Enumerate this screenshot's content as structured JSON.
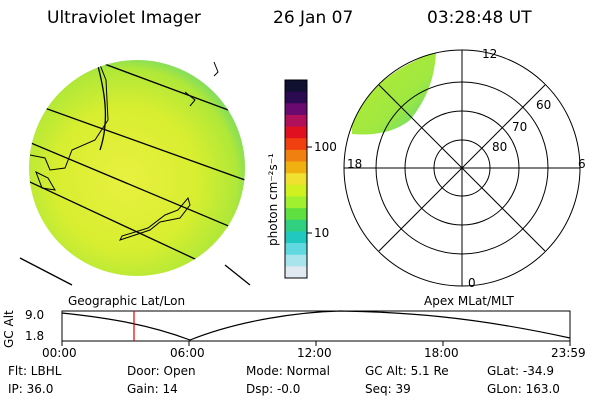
{
  "header": {
    "title": "Ultraviolet Imager",
    "date": "26 Jan 07",
    "time": "03:28:48 UT"
  },
  "colorbar": {
    "label": "photon cm⁻²s⁻¹",
    "ticks": [
      "100",
      "10"
    ],
    "colors": [
      "#101030",
      "#2a0a50",
      "#6a0a70",
      "#b0105a",
      "#e01020",
      "#f04010",
      "#f08010",
      "#f0b010",
      "#f0e030",
      "#d0f020",
      "#a0f030",
      "#60e040",
      "#30d080",
      "#20c8c0",
      "#60d8e0",
      "#a8e4ec",
      "#e0e8f0"
    ]
  },
  "left_panel": {
    "caption": "Geographic Lat/Lon"
  },
  "polar_plot": {
    "caption": "Apex MLat/MLT",
    "mlt_labels": {
      "top": "12",
      "right": "6",
      "bottom": "0",
      "left": "18"
    },
    "lat_labels": [
      "60",
      "70",
      "80"
    ]
  },
  "timeline": {
    "ylabel": "GC Alt",
    "y_ticks": [
      "9.0",
      "1.8"
    ],
    "x_ticks": [
      "00:00",
      "06:00",
      "12:00",
      "18:00",
      "23:59"
    ],
    "marker_time": "03:28:48",
    "marker_color": "#e00000"
  },
  "info": {
    "flt": "Flt: LBHL",
    "ip": "IP: 36.0",
    "door": "Door: Open",
    "gain": "Gain: 14",
    "mode": "Mode: Normal",
    "dsp": "Dsp:  -0.0",
    "gcalt": "GC Alt: 5.1 Re",
    "seq": "Seq: 39",
    "glat": "GLat: -34.9",
    "glon": "GLon: 163.0"
  }
}
